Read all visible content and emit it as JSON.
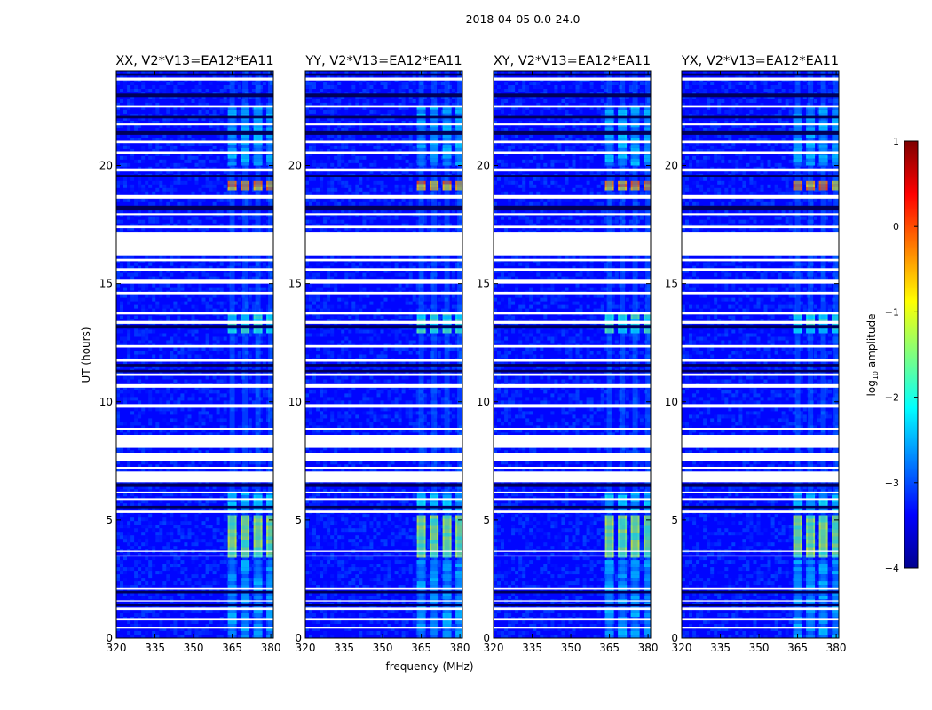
{
  "chart_data": {
    "type": "heatmap",
    "suptitle": "2018-04-05 0.0-24.0",
    "xlabel": "frequency (MHz)",
    "ylabel": "UT (hours)",
    "xlim": [
      320,
      381
    ],
    "ylim": [
      0,
      24
    ],
    "x_ticks": [
      320,
      335,
      350,
      365,
      380
    ],
    "y_ticks": [
      0,
      5,
      10,
      15,
      20
    ],
    "panels": [
      {
        "title": "XX, V2*V13=EA12*EA11"
      },
      {
        "title": "YY, V2*V13=EA12*EA11"
      },
      {
        "title": "XY, V2*V13=EA12*EA11"
      },
      {
        "title": "YX, V2*V13=EA12*EA11"
      }
    ],
    "gap_bands_hours": [
      [
        23.6,
        23.72
      ],
      [
        22.45,
        22.55
      ],
      [
        21.7,
        21.78
      ],
      [
        20.95,
        21.05
      ],
      [
        20.5,
        20.6
      ],
      [
        19.75,
        19.88
      ],
      [
        18.6,
        18.75
      ],
      [
        17.9,
        17.98
      ],
      [
        17.35,
        17.45
      ],
      [
        16.2,
        17.2
      ],
      [
        15.95,
        16.05
      ],
      [
        15.55,
        15.65
      ],
      [
        15.0,
        15.2
      ],
      [
        14.55,
        14.65
      ],
      [
        13.7,
        13.8
      ],
      [
        13.3,
        13.42
      ],
      [
        12.3,
        12.4
      ],
      [
        11.7,
        11.8
      ],
      [
        11.1,
        11.2
      ],
      [
        10.6,
        10.75
      ],
      [
        9.75,
        9.9
      ],
      [
        8.8,
        8.9
      ],
      [
        8.05,
        8.6
      ],
      [
        7.5,
        7.85
      ],
      [
        7.15,
        7.25
      ],
      [
        6.6,
        7.05
      ],
      [
        6.15,
        6.2
      ],
      [
        5.85,
        5.92
      ],
      [
        5.3,
        5.4
      ],
      [
        3.65,
        3.7
      ],
      [
        3.45,
        3.5
      ],
      [
        2.05,
        2.15
      ],
      [
        1.55,
        1.6
      ],
      [
        1.2,
        1.3
      ],
      [
        0.75,
        0.85
      ],
      [
        0.4,
        0.45
      ]
    ],
    "dark_bands_hours": [
      [
        23.8,
        23.9
      ],
      [
        22.9,
        23.05
      ],
      [
        22.0,
        22.1
      ],
      [
        21.3,
        21.45
      ],
      [
        19.5,
        19.6
      ],
      [
        18.1,
        18.3
      ],
      [
        13.1,
        13.25
      ],
      [
        11.5,
        11.6
      ],
      [
        11.25,
        11.35
      ],
      [
        6.4,
        6.55
      ],
      [
        5.5,
        5.6
      ],
      [
        1.9,
        2.0
      ],
      [
        1.35,
        1.45
      ]
    ],
    "rfi_channels_mhz": [
      365,
      370,
      375,
      380
    ],
    "rfi_bursts": [
      {
        "t0": 3.4,
        "t1": 5.2,
        "level": -1.0
      },
      {
        "t0": 12.9,
        "t1": 13.8,
        "level": -1.6
      },
      {
        "t0": 18.95,
        "t1": 19.35,
        "level": 0.1
      },
      {
        "t0": 20.0,
        "t1": 22.5,
        "level": -2.2
      },
      {
        "t0": 0.0,
        "t1": 3.3,
        "level": -2.3
      },
      {
        "t0": 5.3,
        "t1": 6.2,
        "level": -2.0
      }
    ],
    "colorbar": {
      "label_prefix": "log",
      "label_sub": "10",
      "label_suffix": " amplitude",
      "range": [
        -4,
        1
      ],
      "ticks": [
        "1",
        "0",
        "−1",
        "−2",
        "−3",
        "−4"
      ],
      "colors": [
        "#7f0000",
        "#ff0000",
        "#ff7f00",
        "#ffff00",
        "#7fff7f",
        "#00ffff",
        "#007fff",
        "#0000ff",
        "#00008f"
      ]
    }
  }
}
